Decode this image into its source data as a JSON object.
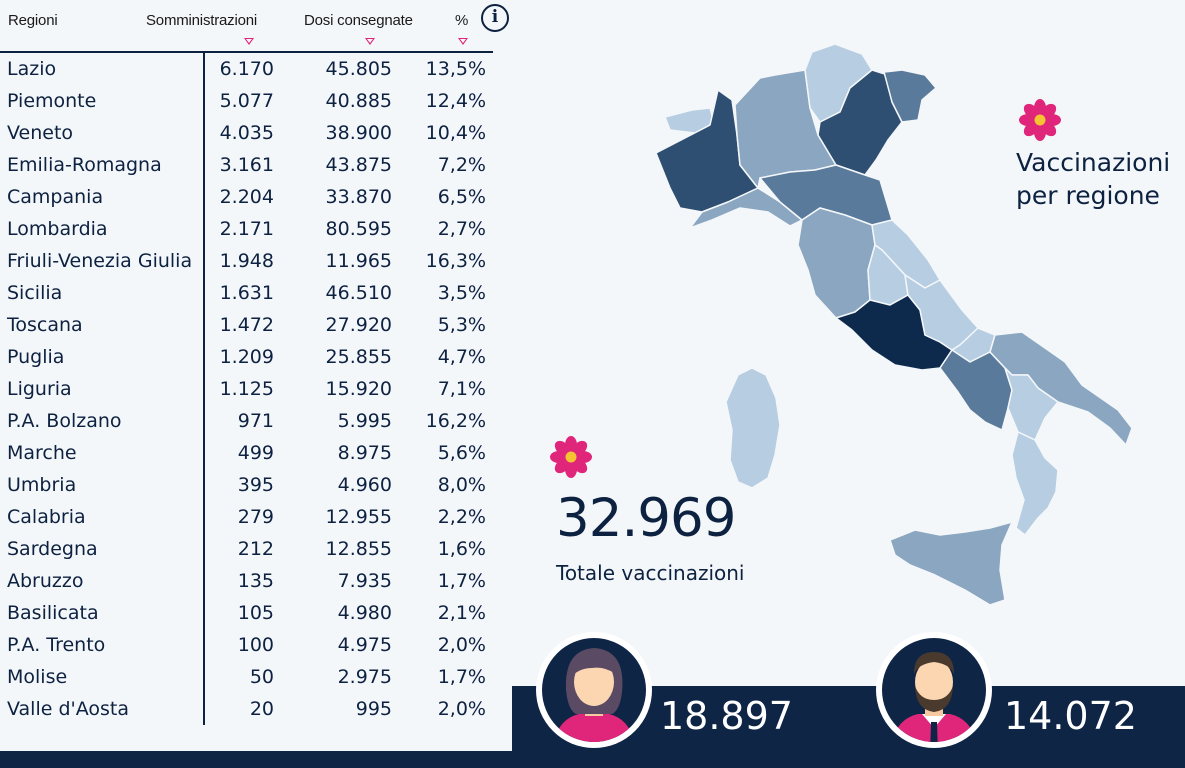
{
  "table": {
    "headers": {
      "region": "Regioni",
      "administrations": "Somministrazioni",
      "doses": "Dosi consegnate",
      "percent": "%"
    },
    "rows": [
      {
        "region": "Lazio",
        "administrations": "6.170",
        "doses": "45.805",
        "percent": "13,5%"
      },
      {
        "region": "Piemonte",
        "administrations": "5.077",
        "doses": "40.885",
        "percent": "12,4%"
      },
      {
        "region": "Veneto",
        "administrations": "4.035",
        "doses": "38.900",
        "percent": "10,4%"
      },
      {
        "region": "Emilia-Romagna",
        "administrations": "3.161",
        "doses": "43.875",
        "percent": "7,2%"
      },
      {
        "region": "Campania",
        "administrations": "2.204",
        "doses": "33.870",
        "percent": "6,5%"
      },
      {
        "region": "Lombardia",
        "administrations": "2.171",
        "doses": "80.595",
        "percent": "2,7%"
      },
      {
        "region": "Friuli-Venezia Giulia",
        "administrations": "1.948",
        "doses": "11.965",
        "percent": "16,3%"
      },
      {
        "region": "Sicilia",
        "administrations": "1.631",
        "doses": "46.510",
        "percent": "3,5%"
      },
      {
        "region": "Toscana",
        "administrations": "1.472",
        "doses": "27.920",
        "percent": "5,3%"
      },
      {
        "region": "Puglia",
        "administrations": "1.209",
        "doses": "25.855",
        "percent": "4,7%"
      },
      {
        "region": "Liguria",
        "administrations": "1.125",
        "doses": "15.920",
        "percent": "7,1%"
      },
      {
        "region": "P.A. Bolzano",
        "administrations": "971",
        "doses": "5.995",
        "percent": "16,2%"
      },
      {
        "region": "Marche",
        "administrations": "499",
        "doses": "8.975",
        "percent": "5,6%"
      },
      {
        "region": "Umbria",
        "administrations": "395",
        "doses": "4.960",
        "percent": "8,0%"
      },
      {
        "region": "Calabria",
        "administrations": "279",
        "doses": "12.955",
        "percent": "2,2%"
      },
      {
        "region": "Sardegna",
        "administrations": "212",
        "doses": "12.855",
        "percent": "1,6%"
      },
      {
        "region": "Abruzzo",
        "administrations": "135",
        "doses": "7.935",
        "percent": "1,7%"
      },
      {
        "region": "Basilicata",
        "administrations": "105",
        "doses": "4.980",
        "percent": "2,1%"
      },
      {
        "region": "P.A. Trento",
        "administrations": "100",
        "doses": "4.975",
        "percent": "2,0%"
      },
      {
        "region": "Molise",
        "administrations": "50",
        "doses": "2.975",
        "percent": "1,7%"
      },
      {
        "region": "Valle d'Aosta",
        "administrations": "20",
        "doses": "995",
        "percent": "2,0%"
      }
    ]
  },
  "map": {
    "title_line1": "Vaccinazioni",
    "title_line2": "per regione"
  },
  "totals": {
    "total_value": "32.969",
    "total_label": "Totale vaccinazioni",
    "female_value": "18.897",
    "male_value": "14.072"
  },
  "icons": [
    "info-icon",
    "sort-down-icon",
    "flower-icon",
    "female-avatar-icon",
    "male-avatar-icon"
  ],
  "colors": {
    "navy": "#0f2546",
    "accent": "#e0267a",
    "map_darkest": "#0d2a4d",
    "map_dark": "#2e4f72",
    "map_mid": "#5a7a9b",
    "map_light": "#8ba6c1",
    "map_lightest": "#b6cde2"
  }
}
